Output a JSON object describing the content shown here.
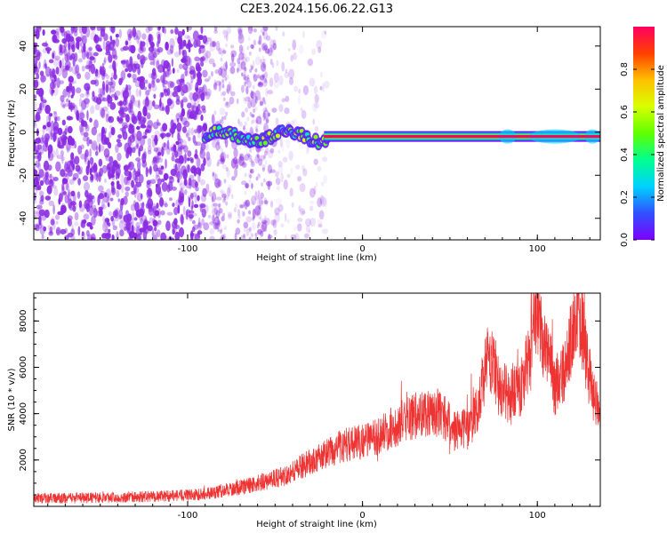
{
  "figure": {
    "title": "C2E3.2024.156.06.22.G13"
  },
  "chart_data": [
    {
      "type": "heatmap",
      "xlabel": "Height of straight line (km)",
      "ylabel": "Frequency (Hz)",
      "xlim": [
        -188,
        136
      ],
      "ylim": [
        -50,
        49
      ],
      "xticks": [
        -100,
        0,
        100
      ],
      "yticks": [
        -40,
        -20,
        0,
        20,
        40
      ],
      "colorbar": {
        "label": "Normalized spectral amplitude",
        "range": [
          0,
          1
        ],
        "ticks": [
          "0.0",
          "0.2",
          "0.4",
          "0.6",
          "0.8"
        ],
        "colormap": [
          "#7f00ff",
          "#3050ff",
          "#00d2ff",
          "#00ff90",
          "#60ff00",
          "#d8ff00",
          "#ffc000",
          "#ff4000",
          "#ff0060"
        ]
      },
      "noise_color": "#8a2be2",
      "carrier_frequency_hz": -2,
      "signal_onset_km": -90
    },
    {
      "type": "line",
      "xlabel": "Height of straight line (km)",
      "ylabel": "SNR (10 * v/v)",
      "xlim": [
        -188,
        136
      ],
      "ylim": [
        0,
        9200
      ],
      "xticks": [
        -100,
        0,
        100
      ],
      "yticks": [
        2000,
        4000,
        6000,
        8000
      ],
      "color": "#ee3333",
      "series": [
        {
          "x": [
            -188,
            -170,
            -150,
            -130,
            -110,
            -95,
            -85,
            -75,
            -65,
            -55,
            -45,
            -38,
            -30,
            -22,
            -15,
            -8,
            0,
            8,
            15,
            22,
            30,
            38,
            45,
            52,
            60,
            66,
            72,
            78,
            85,
            92,
            97,
            100,
            104,
            110,
            116,
            121,
            124,
            128,
            132,
            136
          ],
          "y": [
            350,
            350,
            380,
            400,
            450,
            500,
            600,
            750,
            900,
            1100,
            1300,
            1600,
            1900,
            2200,
            2500,
            2700,
            2800,
            3000,
            3300,
            3600,
            3900,
            4100,
            4000,
            3300,
            3300,
            4300,
            6600,
            5200,
            4700,
            5300,
            7300,
            8600,
            7100,
            5200,
            5700,
            8200,
            8700,
            6300,
            4800,
            4300
          ]
        }
      ]
    }
  ]
}
